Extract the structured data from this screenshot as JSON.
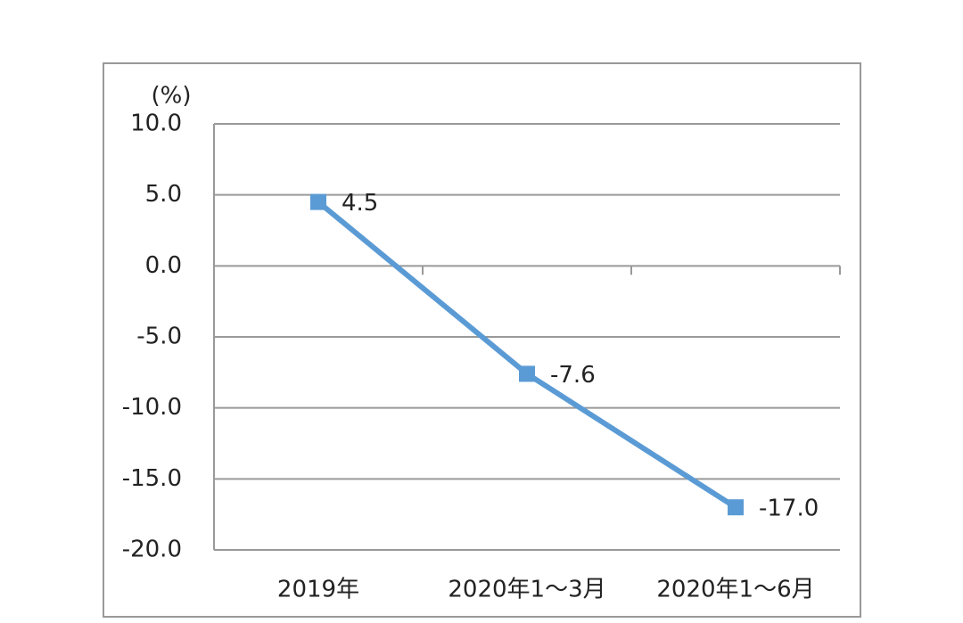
{
  "chart_data": {
    "type": "line",
    "y_label": "(%)",
    "categories": [
      "2019年",
      "2020年1～3月",
      "2020年1～6月"
    ],
    "series": [
      {
        "name": "growth",
        "color": "#5b9bd5",
        "values": [
          4.5,
          -7.6,
          -17.0
        ],
        "value_labels": [
          "4.5",
          "-7.6",
          "-17.0"
        ]
      }
    ],
    "ylim": [
      -20,
      10
    ],
    "yticks": [
      {
        "value": -20,
        "label": "-20.0"
      },
      {
        "value": -15,
        "label": "-15.0"
      },
      {
        "value": -10,
        "label": "-10.0"
      },
      {
        "value": -5,
        "label": "-5.0"
      },
      {
        "value": 0,
        "label": "0.0"
      },
      {
        "value": 5,
        "label": "5.0"
      },
      {
        "value": 10,
        "label": "10.0"
      }
    ],
    "grid": true
  }
}
